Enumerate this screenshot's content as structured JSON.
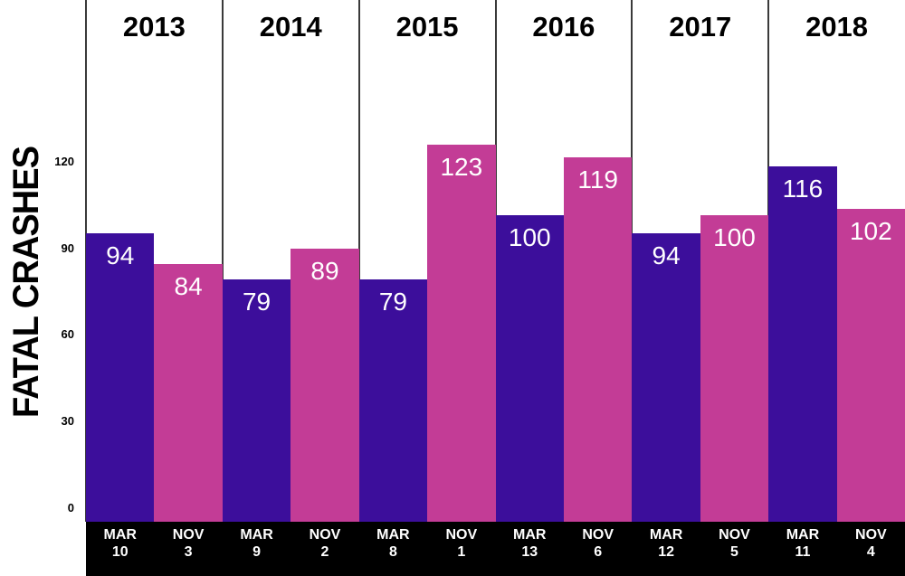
{
  "chart_data": {
    "type": "bar",
    "ylabel": "FATAL CRASHES",
    "yticks": [
      0,
      30,
      60,
      90,
      120
    ],
    "ylim": [
      0,
      170
    ],
    "grid": false,
    "legend": null,
    "years": [
      "2013",
      "2014",
      "2015",
      "2016",
      "2017",
      "2018"
    ],
    "bars": [
      {
        "year": "2013",
        "month": "MAR",
        "day": "10",
        "value": 94,
        "series": "march"
      },
      {
        "year": "2013",
        "month": "NOV",
        "day": "3",
        "value": 84,
        "series": "november"
      },
      {
        "year": "2014",
        "month": "MAR",
        "day": "9",
        "value": 79,
        "series": "march"
      },
      {
        "year": "2014",
        "month": "NOV",
        "day": "2",
        "value": 89,
        "series": "november"
      },
      {
        "year": "2015",
        "month": "MAR",
        "day": "8",
        "value": 79,
        "series": "march"
      },
      {
        "year": "2015",
        "month": "NOV",
        "day": "1",
        "value": 123,
        "series": "november"
      },
      {
        "year": "2016",
        "month": "MAR",
        "day": "13",
        "value": 100,
        "series": "march"
      },
      {
        "year": "2016",
        "month": "NOV",
        "day": "6",
        "value": 119,
        "series": "november"
      },
      {
        "year": "2017",
        "month": "MAR",
        "day": "12",
        "value": 94,
        "series": "march"
      },
      {
        "year": "2017",
        "month": "NOV",
        "day": "5",
        "value": 100,
        "series": "november"
      },
      {
        "year": "2018",
        "month": "MAR",
        "day": "11",
        "value": 116,
        "series": "march"
      },
      {
        "year": "2018",
        "month": "NOV",
        "day": "4",
        "value": 102,
        "series": "november"
      }
    ]
  },
  "colors": {
    "march_bar": "#3C0E9B",
    "november_bar": "#C33C96",
    "bar_value_text": "#FFFFFF",
    "x_band_background": "#000000",
    "x_band_text": "#FFFFFF",
    "divider_line": "#3A3A3A",
    "axis_text": "#000000",
    "background": "#FFFFFF"
  }
}
